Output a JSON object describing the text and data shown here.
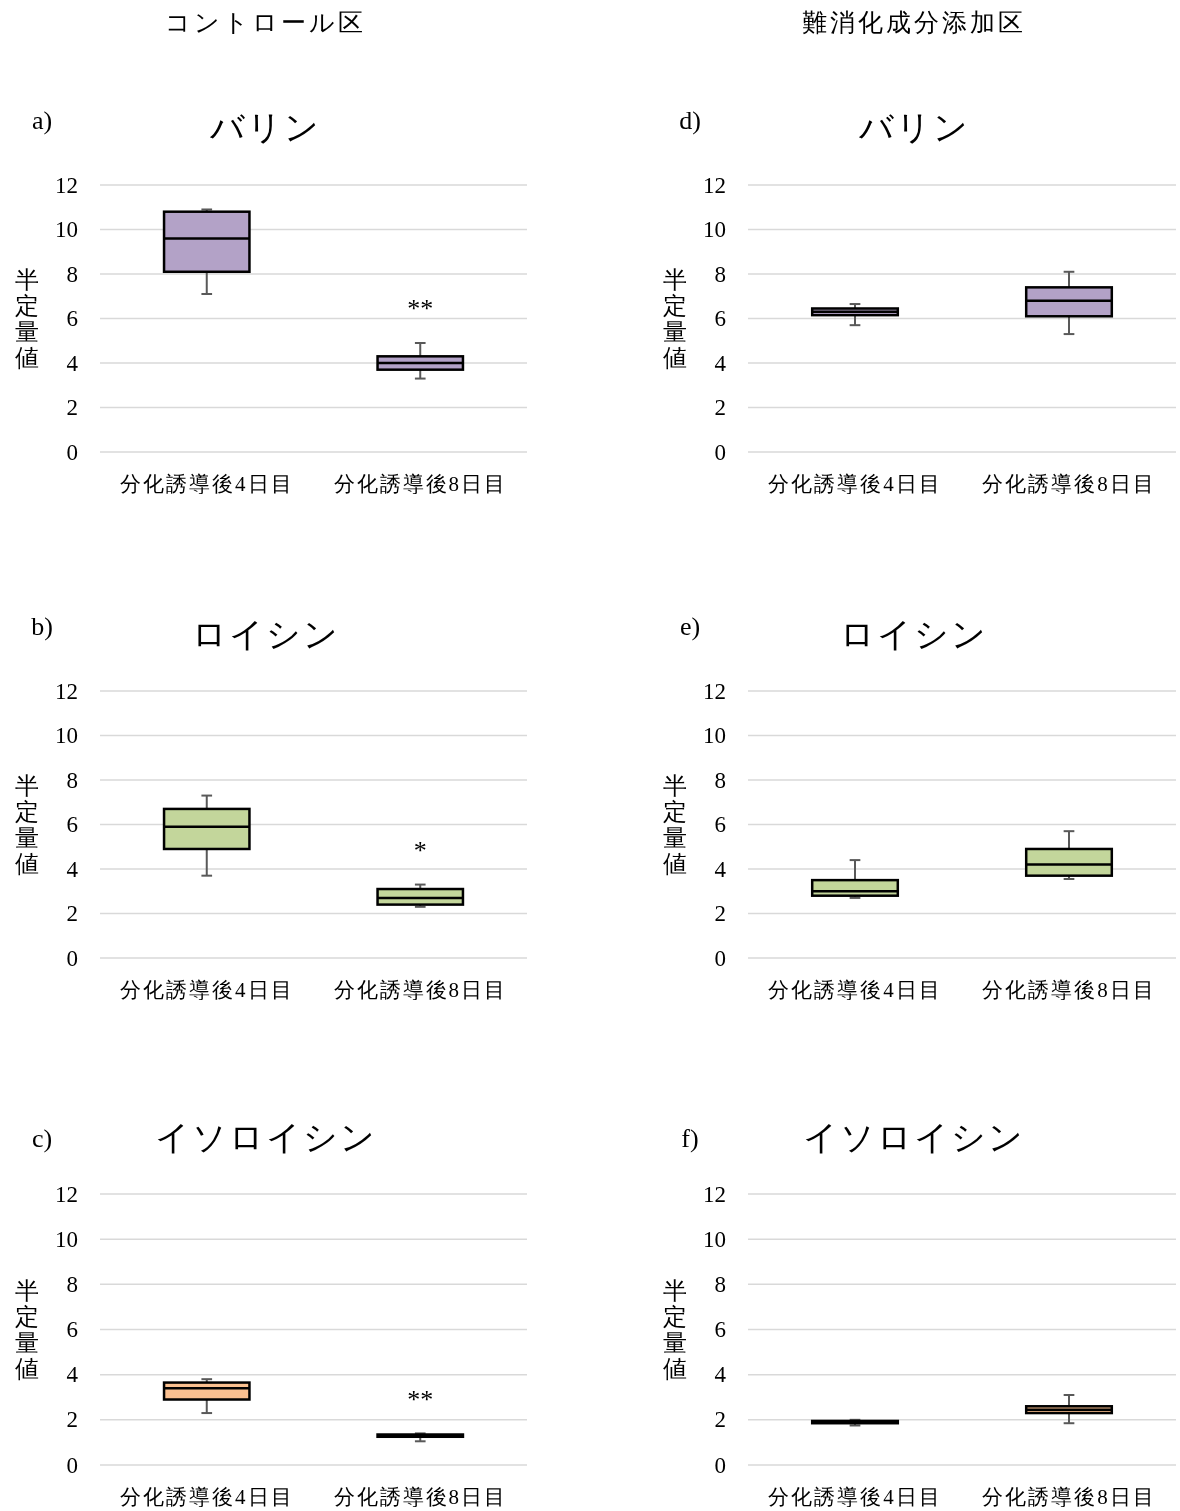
{
  "chart_data": [
    {
      "type": "box",
      "title": "バリン",
      "ylabel": "半定量値",
      "categories": [
        "分化誘導後4日目",
        "分化誘導後8日目"
      ],
      "series": [
        {
          "color": "#b3a2c7",
          "boxes": [
            {
              "low": 7.1,
              "q1": 8.1,
              "median": 9.6,
              "q3": 10.8,
              "high": 10.9
            },
            {
              "low": 3.3,
              "q1": 3.7,
              "median": 4.0,
              "q3": 4.3,
              "high": 4.9
            }
          ]
        }
      ],
      "ylim": [
        0,
        12
      ],
      "yticks": [
        0,
        2,
        4,
        6,
        8,
        10,
        12
      ],
      "grid": "y",
      "annotations": [
        "コントロール区",
        "a)",
        {
          "text": "**",
          "x": "分化誘導後8日目",
          "y": 4.9
        }
      ]
    },
    {
      "type": "box",
      "title": "バリン",
      "ylabel": "半定量値",
      "categories": [
        "分化誘導後4日目",
        "分化誘導後8日目"
      ],
      "series": [
        {
          "color": "#b3a2c7",
          "boxes": [
            {
              "low": 5.7,
              "q1": 6.15,
              "median": 6.3,
              "q3": 6.45,
              "high": 6.65
            },
            {
              "low": 5.3,
              "q1": 6.1,
              "median": 6.8,
              "q3": 7.4,
              "high": 8.1
            }
          ]
        }
      ],
      "ylim": [
        0,
        12
      ],
      "yticks": [
        0,
        2,
        4,
        6,
        8,
        10,
        12
      ],
      "grid": "y",
      "annotations": [
        "難消化成分添加区",
        "d)"
      ]
    },
    {
      "type": "box",
      "title": "ロイシン",
      "ylabel": "半定量値",
      "categories": [
        "分化誘導後4日目",
        "分化誘導後8日目"
      ],
      "series": [
        {
          "color": "#c3d69b",
          "boxes": [
            {
              "low": 3.7,
              "q1": 4.9,
              "median": 5.9,
              "q3": 6.7,
              "high": 7.3
            },
            {
              "low": 2.3,
              "q1": 2.4,
              "median": 2.7,
              "q3": 3.1,
              "high": 3.3
            }
          ]
        }
      ],
      "ylim": [
        0,
        12
      ],
      "yticks": [
        0,
        2,
        4,
        6,
        8,
        10,
        12
      ],
      "grid": "y",
      "annotations": [
        "b)",
        {
          "text": "*",
          "x": "分化誘導後8日目",
          "y": 3.3
        }
      ]
    },
    {
      "type": "box",
      "title": "ロイシン",
      "ylabel": "半定量値",
      "categories": [
        "分化誘導後4日目",
        "分化誘導後8日目"
      ],
      "series": [
        {
          "color": "#c3d69b",
          "boxes": [
            {
              "low": 2.7,
              "q1": 2.8,
              "median": 3.0,
              "q3": 3.5,
              "high": 4.4
            },
            {
              "low": 3.55,
              "q1": 3.7,
              "median": 4.2,
              "q3": 4.9,
              "high": 5.7
            }
          ]
        }
      ],
      "ylim": [
        0,
        12
      ],
      "yticks": [
        0,
        2,
        4,
        6,
        8,
        10,
        12
      ],
      "grid": "y",
      "annotations": [
        "e)"
      ]
    },
    {
      "type": "box",
      "title": "イソロイシン",
      "ylabel": "半定量値",
      "categories": [
        "分化誘導後4日目",
        "分化誘導後8日目"
      ],
      "series": [
        {
          "color": "#fac090",
          "boxes": [
            {
              "low": 2.3,
              "q1": 2.9,
              "median": 3.4,
              "q3": 3.65,
              "high": 3.8
            },
            {
              "low": 1.05,
              "q1": 1.25,
              "median": 1.3,
              "q3": 1.35,
              "high": 1.4
            }
          ]
        }
      ],
      "ylim": [
        0,
        12
      ],
      "yticks": [
        0,
        2,
        4,
        6,
        8,
        10,
        12
      ],
      "grid": "y",
      "annotations": [
        "c)",
        {
          "text": "**",
          "x": "分化誘導後8日目",
          "y": 1.4
        }
      ]
    },
    {
      "type": "box",
      "title": "イソロイシン",
      "ylabel": "半定量値",
      "categories": [
        "分化誘導後4日目",
        "分化誘導後8日目"
      ],
      "series": [
        {
          "color": "#fac090",
          "boxes": [
            {
              "low": 1.75,
              "q1": 1.85,
              "median": 1.9,
              "q3": 1.95,
              "high": 2.0
            },
            {
              "low": 1.85,
              "q1": 2.3,
              "median": 2.45,
              "q3": 2.6,
              "high": 3.1
            }
          ]
        }
      ],
      "ylim": [
        0,
        12
      ],
      "yticks": [
        0,
        2,
        4,
        6,
        8,
        10,
        12
      ],
      "grid": "y",
      "annotations": [
        "f)"
      ]
    }
  ]
}
